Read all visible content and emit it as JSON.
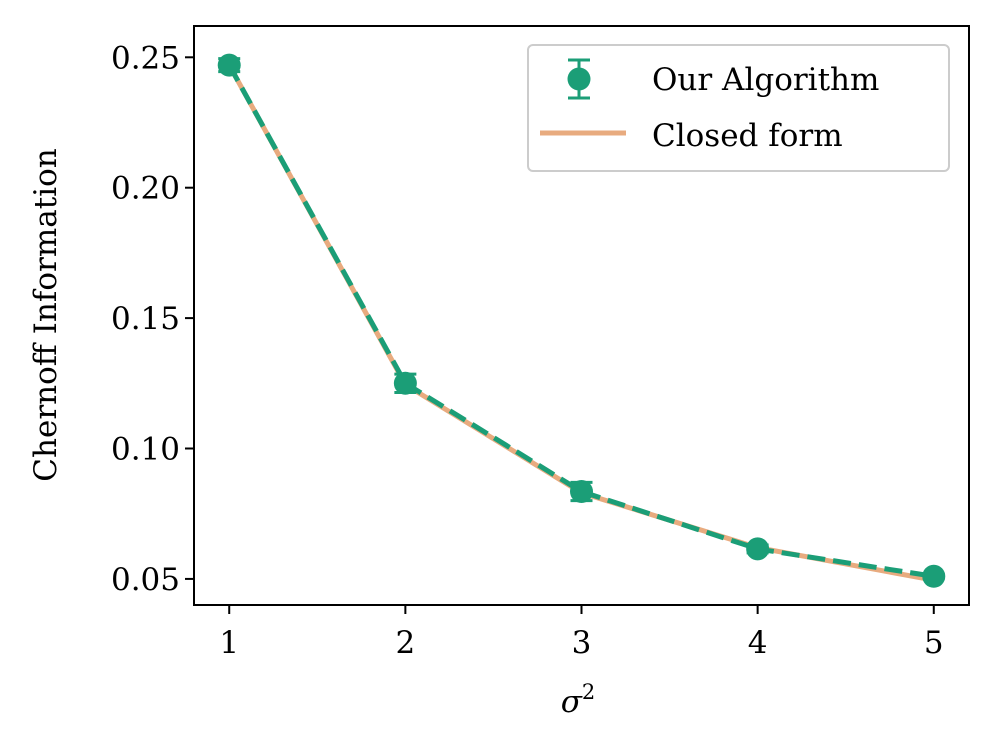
{
  "chart_data": {
    "type": "line",
    "title": "",
    "xlabel": "σ",
    "xlabel_superscript": "2",
    "ylabel": "Chernoff Information",
    "x": [
      1,
      2,
      3,
      4,
      5
    ],
    "xlim": [
      0.8,
      5.2
    ],
    "ylim": [
      0.04,
      0.262
    ],
    "xticks": [
      1,
      2,
      3,
      4,
      5
    ],
    "xtick_labels": [
      "1",
      "2",
      "3",
      "4",
      "5"
    ],
    "yticks": [
      0.05,
      0.1,
      0.15,
      0.2,
      0.25
    ],
    "ytick_labels": [
      "0.05",
      "0.10",
      "0.15",
      "0.20",
      "0.25"
    ],
    "grid": false,
    "legend_position": "top-right",
    "series": [
      {
        "name": "Our Algorithm",
        "style": "dashed line with circle markers and error bars",
        "color": "#1b9e77",
        "values": [
          0.247,
          0.125,
          0.0835,
          0.0615,
          0.051
        ],
        "errors": [
          0.0025,
          0.0035,
          0.0035,
          0.0015,
          0.0008
        ]
      },
      {
        "name": "Closed form",
        "style": "solid line",
        "color": "#e8ab7f",
        "values": [
          0.247,
          0.1245,
          0.083,
          0.062,
          0.0495
        ]
      }
    ]
  }
}
